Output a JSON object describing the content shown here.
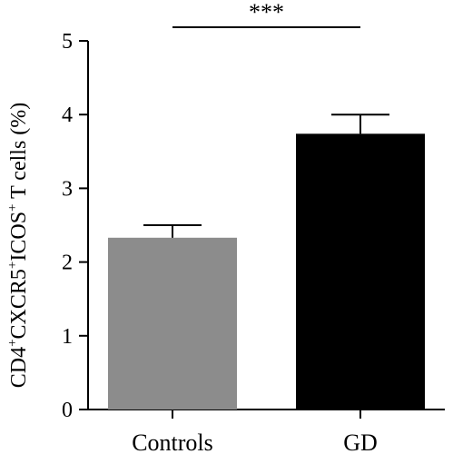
{
  "chart_data": {
    "type": "bar",
    "categories": [
      "Controls",
      "GD"
    ],
    "values": [
      2.33,
      3.74
    ],
    "errors": [
      0.17,
      0.26
    ],
    "bar_colors": [
      "#8c8c8c",
      "#000000"
    ],
    "ylabel": {
      "p1": "CD4",
      "s1": "+",
      "p2": "CXCR5",
      "s2": "+",
      "p3": "ICOS",
      "s3": "+",
      "p4": " T cells (%)"
    },
    "ylim": [
      0,
      5
    ],
    "yticks": [
      "0",
      "1",
      "2",
      "3",
      "4",
      "5"
    ],
    "significance": "***",
    "grid": false,
    "legend": "none"
  }
}
